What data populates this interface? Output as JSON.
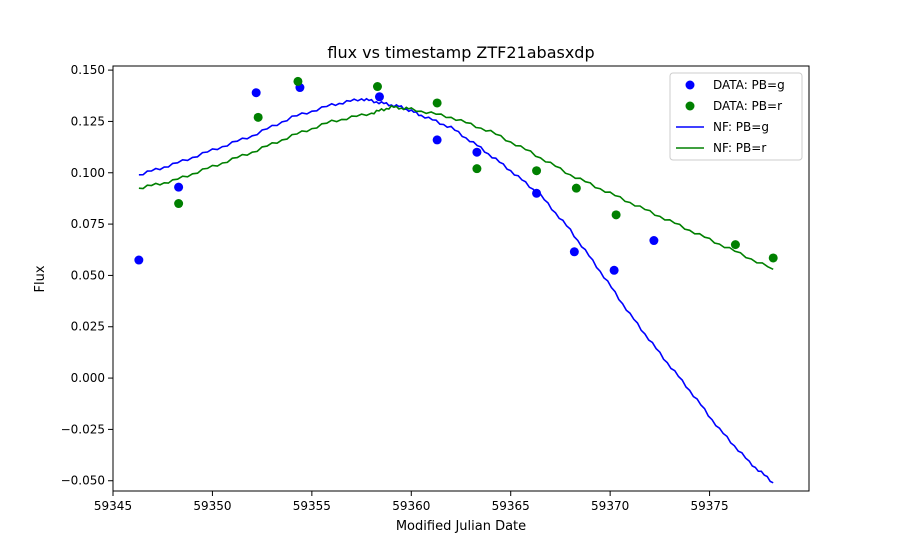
{
  "chart_data": {
    "type": "scatter",
    "title": "flux vs timestamp ZTF21abasxdp",
    "xlabel": "Modified Julian Date",
    "ylabel": "Flux",
    "xlim": [
      59345.0,
      59380.0
    ],
    "ylim": [
      -0.055,
      0.152
    ],
    "xticks": [
      59345,
      59350,
      59355,
      59360,
      59365,
      59370,
      59375
    ],
    "xtick_labels": [
      "59345",
      "59350",
      "59355",
      "59360",
      "59365",
      "59370",
      "59375"
    ],
    "yticks": [
      -0.05,
      -0.025,
      0.0,
      0.025,
      0.05,
      0.075,
      0.1,
      0.125,
      0.15
    ],
    "ytick_labels": [
      "−0.050",
      "−0.025",
      "0.000",
      "0.025",
      "0.050",
      "0.075",
      "0.100",
      "0.125",
      "0.150"
    ],
    "grid": false,
    "legend_position": "upper right",
    "colors": {
      "g": "#0000ff",
      "r": "#008000"
    },
    "series": [
      {
        "name": "DATA: PB=g",
        "kind": "scatter",
        "color": "#0000ff",
        "x": [
          59346.3,
          59348.3,
          59352.2,
          59354.4,
          59358.4,
          59361.3,
          59363.3,
          59366.3,
          59368.2,
          59370.2,
          59372.2
        ],
        "y": [
          0.0575,
          0.093,
          0.139,
          0.1415,
          0.137,
          0.116,
          0.11,
          0.09,
          0.0615,
          0.0525,
          0.067
        ]
      },
      {
        "name": "DATA: PB=r",
        "kind": "scatter",
        "color": "#008000",
        "x": [
          59348.3,
          59352.3,
          59354.3,
          59358.3,
          59361.3,
          59363.3,
          59366.3,
          59368.3,
          59370.3,
          59376.3,
          59378.2
        ],
        "y": [
          0.085,
          0.127,
          0.1445,
          0.142,
          0.134,
          0.102,
          0.101,
          0.0925,
          0.0795,
          0.065,
          0.0585
        ]
      },
      {
        "name": "NF: PB=g",
        "kind": "line",
        "color": "#0000ff",
        "x": [
          59346.3,
          59348,
          59350,
          59352,
          59354,
          59356,
          59357.5,
          59358.5,
          59359.5,
          59360.5,
          59362,
          59363.5,
          59365,
          59366.5,
          59368,
          59369.5,
          59371,
          59372.5,
          59374,
          59375.5,
          59377,
          59378.2
        ],
        "y": [
          0.099,
          0.104,
          0.111,
          0.118,
          0.127,
          0.133,
          0.136,
          0.134,
          0.132,
          0.128,
          0.122,
          0.112,
          0.101,
          0.089,
          0.072,
          0.052,
          0.031,
          0.012,
          -0.006,
          -0.025,
          -0.041,
          -0.051
        ]
      },
      {
        "name": "NF: PB=r",
        "kind": "line",
        "color": "#008000",
        "x": [
          59346.3,
          59348,
          59350,
          59352,
          59354,
          59356,
          59358,
          59359,
          59360,
          59362,
          59364,
          59366,
          59368,
          59370,
          59372,
          59374,
          59376,
          59378.2
        ],
        "y": [
          0.0925,
          0.096,
          0.103,
          0.11,
          0.118,
          0.125,
          0.129,
          0.132,
          0.131,
          0.127,
          0.12,
          0.11,
          0.099,
          0.09,
          0.081,
          0.072,
          0.063,
          0.053
        ]
      }
    ]
  }
}
